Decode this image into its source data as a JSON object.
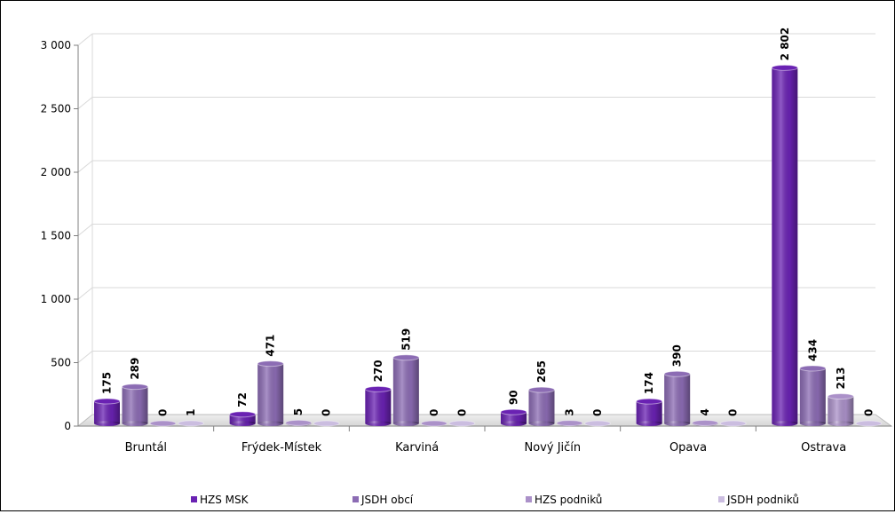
{
  "chart_data": {
    "type": "bar",
    "categories": [
      "Bruntál",
      "Frýdek-Místek",
      "Karviná",
      "Nový Jičín",
      "Opava",
      "Ostrava"
    ],
    "series": [
      {
        "name": "HZS MSK",
        "color": "#6a22b3",
        "values": [
          175,
          72,
          270,
          90,
          174,
          2802
        ]
      },
      {
        "name": "JSDH obcí",
        "color": "#8c6cb4",
        "values": [
          289,
          471,
          519,
          265,
          390,
          434
        ]
      },
      {
        "name": "HZS podniků",
        "color": "#ab91c9",
        "values": [
          0,
          5,
          0,
          3,
          4,
          213
        ]
      },
      {
        "name": "JSDH podniků",
        "color": "#cbbde0",
        "values": [
          1,
          0,
          0,
          0,
          0,
          0
        ]
      }
    ],
    "data_labels": [
      [
        "175",
        "289",
        "0",
        "1"
      ],
      [
        "72",
        "471",
        "5",
        "0"
      ],
      [
        "270",
        "519",
        "0",
        "0"
      ],
      [
        "90",
        "265",
        "3",
        "0"
      ],
      [
        "174",
        "390",
        "4",
        "0"
      ],
      [
        "2 802",
        "434",
        "213",
        "0"
      ]
    ],
    "yticks": [
      "0",
      "500",
      "1 000",
      "1 500",
      "2 000",
      "2 500",
      "3 000"
    ],
    "ylim": [
      0,
      3000
    ],
    "grid": true,
    "legend_position": "bottom"
  }
}
